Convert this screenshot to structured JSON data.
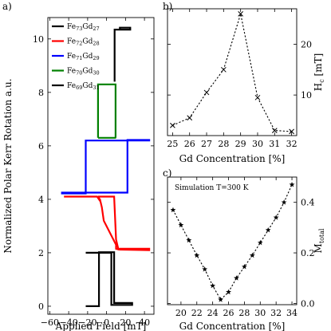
{
  "chart_data": [
    {
      "panel": "a)",
      "type": "line",
      "xlabel": "Applied Field [mT]",
      "ylabel": "Normalized Polar Kerr Rotation a.u.",
      "xlim": [
        -62,
        50
      ],
      "ylim": [
        -0.3,
        10.8
      ],
      "xticks": [
        -60,
        -40,
        -20,
        0,
        20,
        40
      ],
      "yticks": [
        0,
        2,
        4,
        6,
        8,
        10
      ],
      "xtick_labels": [
        "−60",
        "−40",
        "−20",
        "0",
        "20",
        "40"
      ],
      "legend_position": "top-left",
      "series": [
        {
          "name": "Fe73Gd27",
          "label_parts": [
            "Fe",
            "73",
            "Gd",
            "27"
          ],
          "color": "#000000",
          "x": [
            8.5,
            8.5,
            14,
            14,
            25,
            25,
            8.5
          ],
          "y": [
            8.4,
            10.35,
            10.35,
            10.42,
            10.42,
            10.35,
            10.35
          ]
        },
        {
          "name": "Fe72Gd28",
          "label_parts": [
            "Fe",
            "72",
            "Gd",
            "28"
          ],
          "color": "#ff0000",
          "x": [
            -45,
            -10,
            -7,
            -5,
            -3,
            10,
            10,
            13,
            45,
            45,
            12,
            12,
            10,
            8,
            -8,
            -8,
            -10,
            -45
          ],
          "y": [
            4.1,
            4.1,
            4.0,
            3.7,
            3.2,
            2.3,
            2.15,
            2.12,
            2.1,
            2.15,
            2.15,
            2.2,
            2.5,
            4.1,
            4.1,
            4.0,
            4.1,
            4.1
          ]
        },
        {
          "name": "Fe71Gd29",
          "label_parts": [
            "Fe",
            "71",
            "Gd",
            "29"
          ],
          "color": "#0000ff",
          "x": [
            -48,
            -22,
            -22,
            45,
            45,
            22,
            22,
            -48
          ],
          "y": [
            4.22,
            4.22,
            6.2,
            6.2,
            6.22,
            6.22,
            4.25,
            4.25
          ]
        },
        {
          "name": "Fe70Gd30",
          "label_parts": [
            "Fe",
            "70",
            "Gd",
            "30"
          ],
          "color": "#008000",
          "x": [
            -9,
            -9,
            9.5,
            9.5,
            10,
            -9
          ],
          "y": [
            6.3,
            8.3,
            8.3,
            6.3,
            6.3,
            6.3
          ]
        },
        {
          "name": "Fe69Gd31",
          "label_parts": [
            "Fe",
            "69",
            "Gd",
            "31"
          ],
          "color": "#000000",
          "x": [
            -22,
            5,
            5,
            27,
            27,
            8,
            8,
            -8,
            -8,
            -22
          ],
          "y": [
            2.0,
            2.0,
            0.05,
            0.05,
            0.12,
            0.12,
            2.02,
            2.02,
            0.0,
            0.0
          ]
        }
      ]
    },
    {
      "panel": "b)",
      "type": "line",
      "xlabel": "Gd Concentration [%]",
      "ylabel": "H",
      "ylabel_sub": "c",
      "ylabel_unit": " [mT]",
      "xlim": [
        24.7,
        32.3
      ],
      "ylim": [
        2.0,
        27.0
      ],
      "xticks": [
        25,
        26,
        27,
        28,
        29,
        30,
        31,
        32
      ],
      "yticks": [
        10,
        20
      ],
      "y_axis_side": "right",
      "x": [
        25,
        26,
        27,
        28,
        29,
        30,
        31,
        32
      ],
      "y": [
        4.0,
        5.5,
        10.5,
        15.0,
        26.0,
        9.5,
        3.0,
        2.8
      ]
    },
    {
      "panel": "c)",
      "type": "line",
      "annotation": "Simulation T=300 K",
      "xlabel": "Gd Concentration [%]",
      "ylabel": "M",
      "ylabel_sub": "total",
      "xlim": [
        18.3,
        34.6
      ],
      "ylim": [
        -0.005,
        0.5
      ],
      "xticks": [
        20,
        22,
        24,
        26,
        28,
        30,
        32,
        34
      ],
      "yticks": [
        0.0,
        0.2,
        0.4
      ],
      "ytick_labels": [
        "0.0",
        "0.2",
        "0.4"
      ],
      "y_axis_side": "right",
      "x": [
        19,
        20,
        21,
        22,
        23,
        24,
        25,
        26,
        27,
        28,
        29,
        30,
        31,
        32,
        33,
        34
      ],
      "y": [
        0.37,
        0.31,
        0.25,
        0.19,
        0.135,
        0.07,
        0.015,
        0.045,
        0.1,
        0.145,
        0.19,
        0.24,
        0.29,
        0.34,
        0.4,
        0.47
      ]
    }
  ]
}
